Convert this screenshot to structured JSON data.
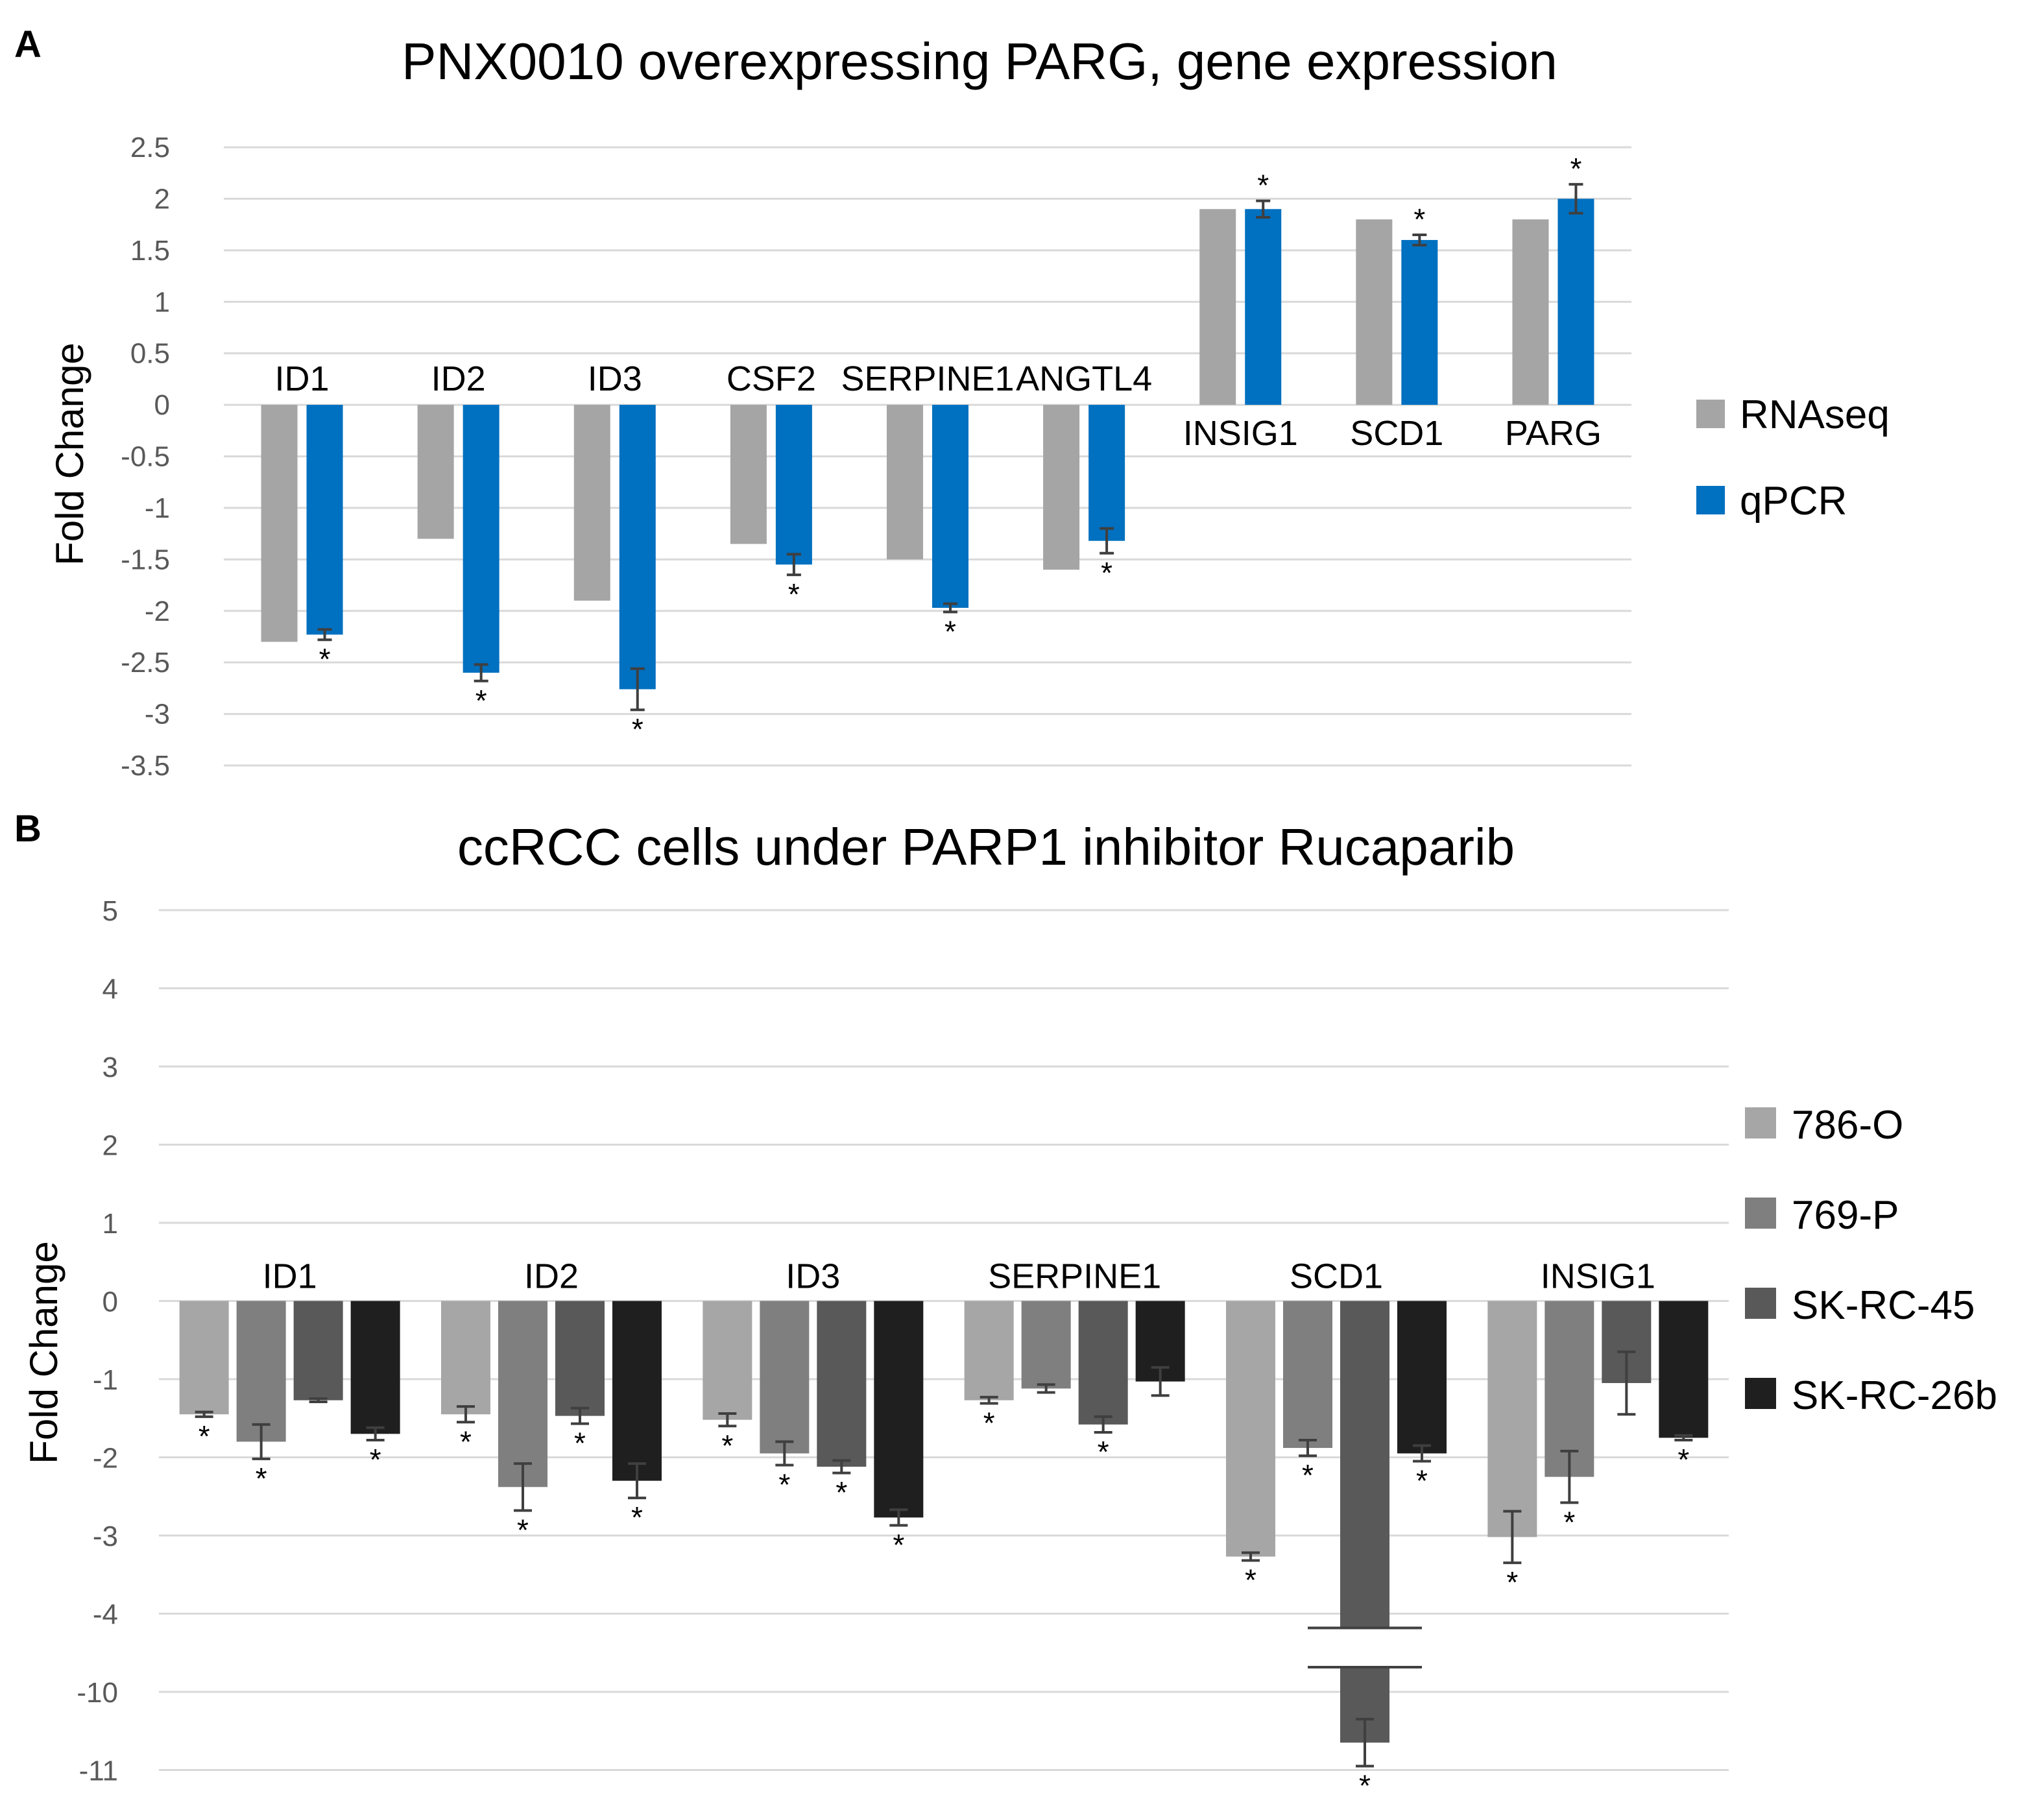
{
  "chart_data": [
    {
      "panel": "A",
      "type": "bar",
      "title": "PNX0010 overexpressing PARG, gene expression",
      "ylabel": "Fold Change",
      "xlabel": "",
      "ylim": [
        -3.5,
        2.5
      ],
      "yticks": [
        "2.5",
        "2",
        "1.5",
        "1",
        "0.5",
        "0",
        "-0.5",
        "-1",
        "-1.5",
        "-2",
        "-2.5",
        "-3",
        "-3.5"
      ],
      "grid": true,
      "legend_position": "right",
      "categories": [
        "ID1",
        "ID2",
        "ID3",
        "CSF2",
        "SERPINE1",
        "ANGTL4",
        "INSIG1",
        "SCD1",
        "PARG"
      ],
      "series": [
        {
          "name": "RNAseq",
          "color": "#a5a5a5",
          "values": [
            -2.3,
            -1.3,
            -1.9,
            -1.35,
            -1.5,
            -1.6,
            1.9,
            1.8,
            1.8
          ],
          "errors": [
            null,
            null,
            null,
            null,
            null,
            null,
            null,
            null,
            null
          ],
          "significant": [
            false,
            false,
            false,
            false,
            false,
            false,
            false,
            false,
            false
          ]
        },
        {
          "name": "qPCR",
          "color": "#0070c0",
          "values": [
            -2.23,
            -2.6,
            -2.76,
            -1.55,
            -1.97,
            -1.32,
            1.9,
            1.6,
            2.0
          ],
          "errors": [
            0.05,
            0.08,
            0.2,
            0.1,
            0.04,
            0.12,
            0.08,
            0.05,
            0.14
          ],
          "significant": [
            true,
            true,
            true,
            true,
            true,
            true,
            true,
            true,
            true
          ]
        }
      ]
    },
    {
      "panel": "B",
      "type": "bar",
      "title": "ccRCC cells under PARP1 inhibitor Rucaparib",
      "ylabel": "Fold Change",
      "xlabel": "",
      "ylim": [
        -11,
        5
      ],
      "axis_break": "between -4 and -10",
      "yticks": [
        "5",
        "4",
        "3",
        "2",
        "1",
        "0",
        "-1",
        "-2",
        "-3",
        "-4",
        "-10",
        "-11"
      ],
      "grid": true,
      "legend_position": "right",
      "categories": [
        "ID1",
        "ID2",
        "ID3",
        "SERPINE1",
        "SCD1",
        "INSIG1"
      ],
      "series": [
        {
          "name": "786-O",
          "color": "#a6a6a6",
          "values": [
            -1.45,
            -1.45,
            -1.52,
            -1.27,
            -3.27,
            -3.02
          ],
          "errors": [
            0.03,
            0.1,
            0.08,
            0.04,
            0.05,
            0.33
          ],
          "significant": [
            true,
            true,
            true,
            true,
            true,
            true
          ]
        },
        {
          "name": "769-P",
          "color": "#7f7f7f",
          "values": [
            -1.8,
            -2.38,
            -1.95,
            -1.12,
            -1.88,
            -2.25
          ],
          "errors": [
            0.22,
            0.3,
            0.15,
            0.05,
            0.1,
            0.33
          ],
          "significant": [
            true,
            true,
            true,
            false,
            true,
            true
          ]
        },
        {
          "name": "SK-RC-45",
          "color": "#595959",
          "values": [
            -1.27,
            -1.47,
            -2.12,
            -1.58,
            -10.65,
            -1.05
          ],
          "errors": [
            0.02,
            0.1,
            0.08,
            0.1,
            0.3,
            0.4
          ],
          "significant": [
            false,
            true,
            true,
            true,
            true,
            false
          ]
        },
        {
          "name": "SK-RC-26b",
          "color": "#1f1f1f",
          "values": [
            -1.7,
            -2.3,
            -2.77,
            -1.03,
            -1.95,
            -1.75
          ],
          "errors": [
            0.08,
            0.22,
            0.1,
            0.18,
            0.1,
            0.03
          ],
          "significant": [
            true,
            true,
            true,
            false,
            true,
            true
          ]
        }
      ]
    }
  ],
  "labels": {
    "panelA": "A",
    "panelB": "B",
    "star": "*"
  }
}
